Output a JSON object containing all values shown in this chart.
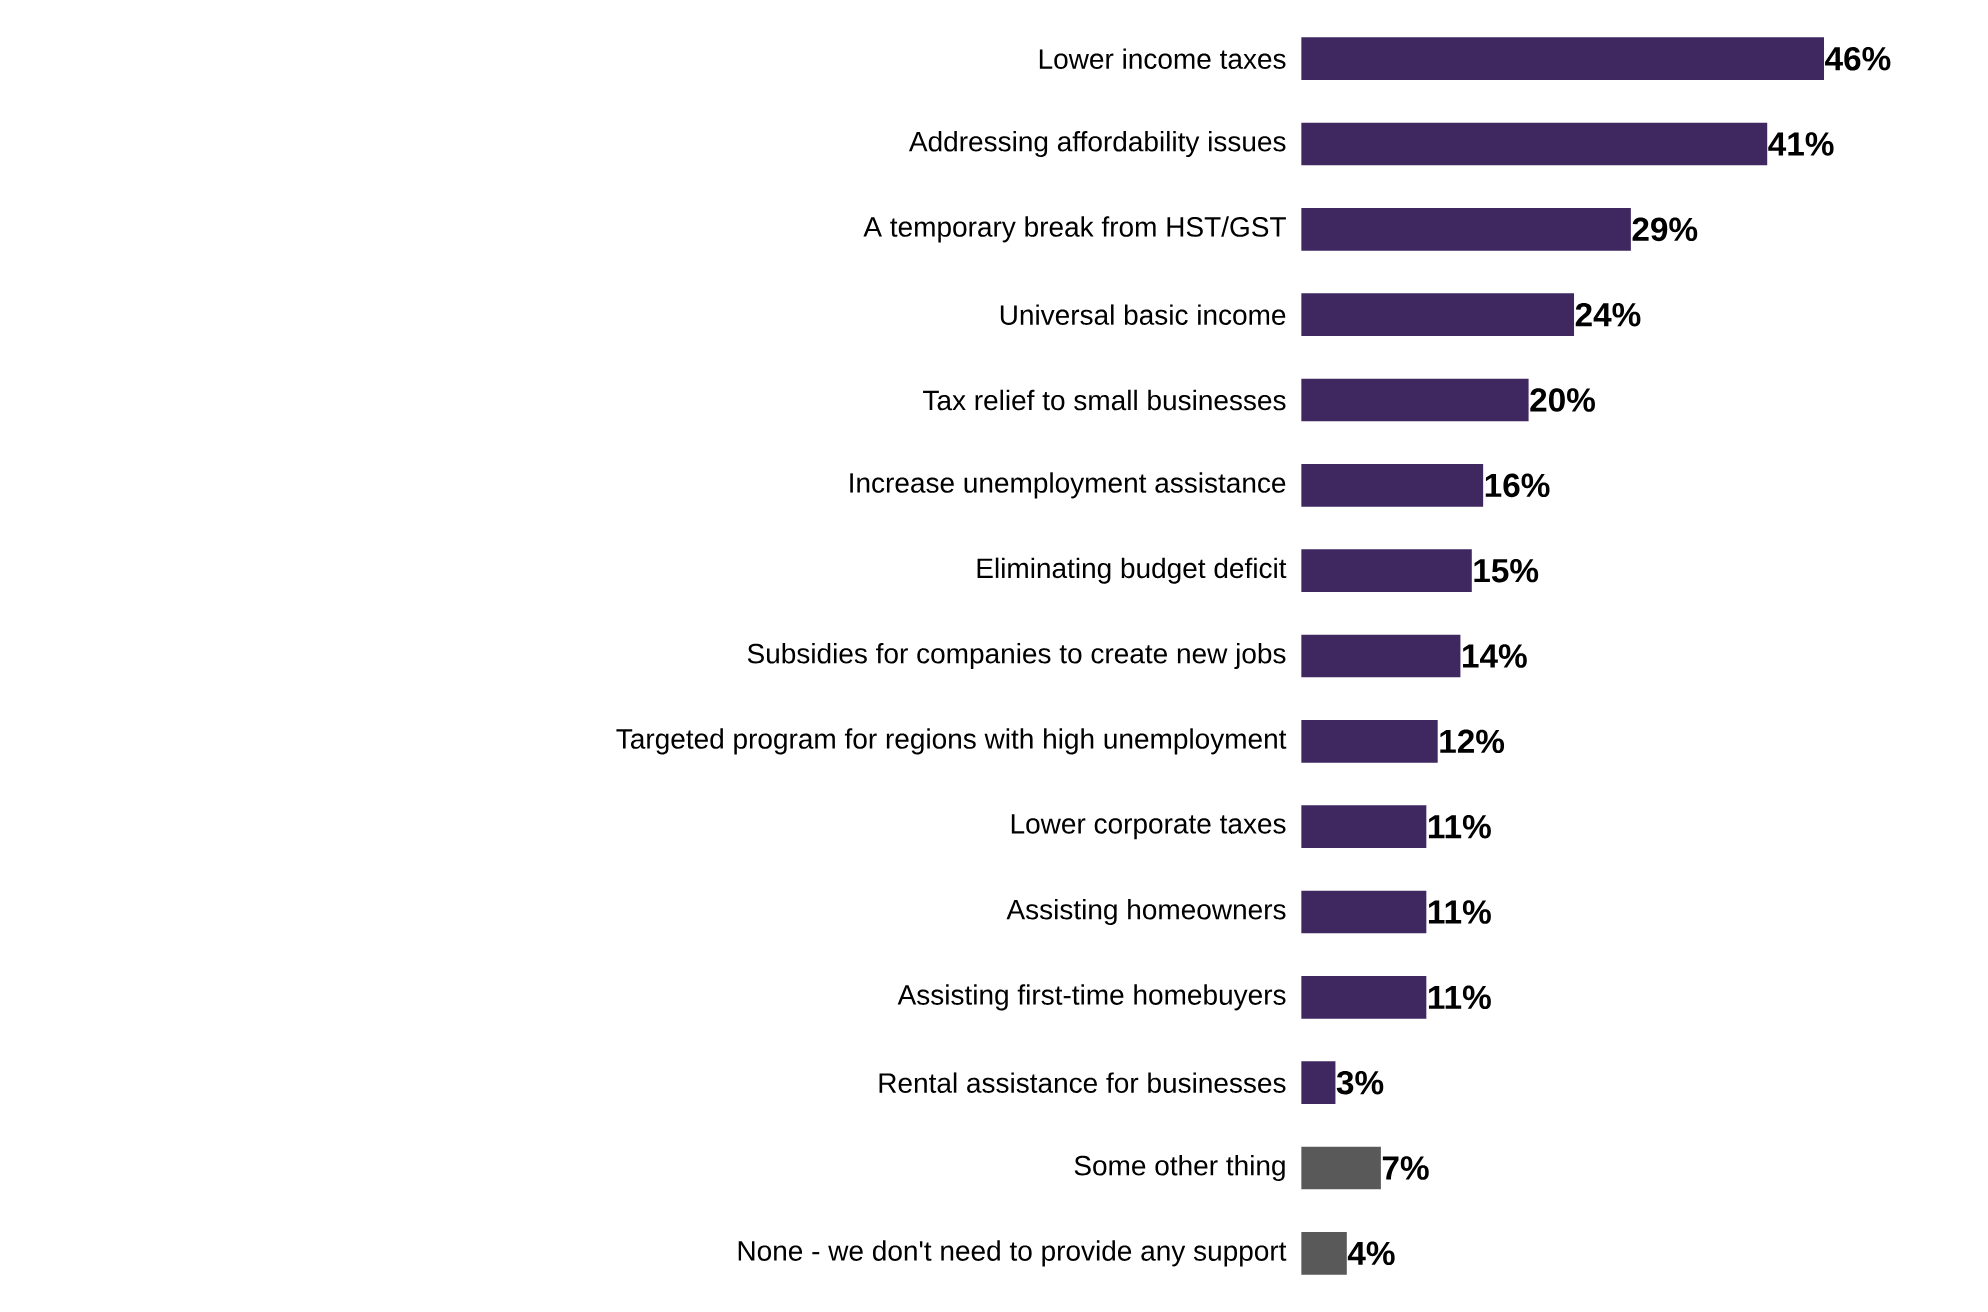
{
  "chart_data": {
    "type": "bar",
    "orientation": "horizontal",
    "categories": [
      "Lower income taxes",
      "Addressing affordability issues",
      "A temporary break from HST/GST",
      "Universal basic income",
      "Tax relief to small businesses",
      "Increase unemployment assistance",
      "Eliminating budget deficit",
      "Subsidies for companies to create new jobs",
      "Targeted program for regions with high unemployment",
      "Lower corporate taxes",
      "Assisting homeowners",
      "Assisting first-time homebuyers",
      "Rental assistance for businesses",
      "Some other thing",
      "None - we don't need to provide any support"
    ],
    "values": [
      46,
      41,
      29,
      24,
      20,
      16,
      15,
      14,
      12,
      11,
      11,
      11,
      3,
      7,
      4
    ],
    "value_labels": [
      "46%",
      "41%",
      "29%",
      "24%",
      "20%",
      "16%",
      "15%",
      "14%",
      "12%",
      "11%",
      "11%",
      "11%",
      "3%",
      "7%",
      "4%"
    ],
    "colors": [
      "#3f2760",
      "#3f2760",
      "#3f2760",
      "#3f2760",
      "#3f2760",
      "#3f2760",
      "#3f2760",
      "#3f2760",
      "#3f2760",
      "#3f2760",
      "#3f2760",
      "#3f2760",
      "#3f2760",
      "#595959",
      "#595959"
    ]
  }
}
